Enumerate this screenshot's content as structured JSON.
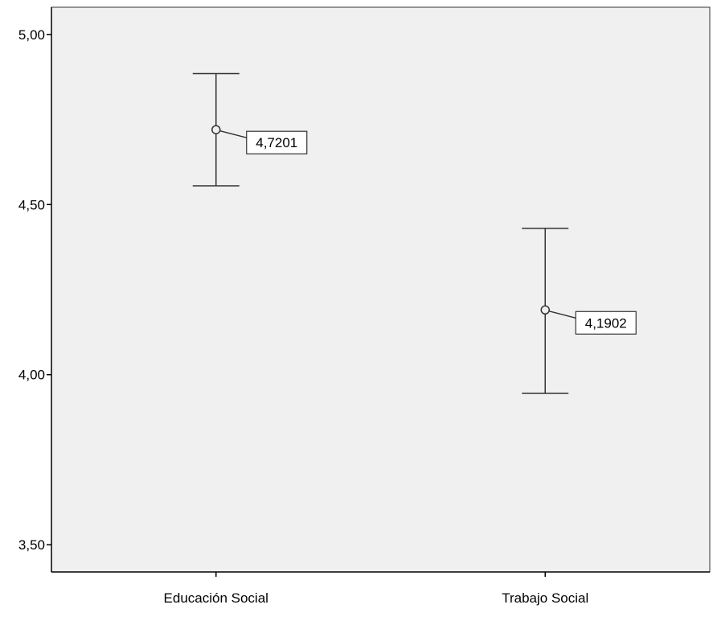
{
  "chart_data": {
    "type": "scatter",
    "title": "",
    "xlabel": "",
    "ylabel": "",
    "categories": [
      "Educación Social",
      "Trabajo Social"
    ],
    "series": [
      {
        "points": [
          {
            "category": "Educación Social",
            "mean": 4.7201,
            "lower": 4.555,
            "upper": 4.885,
            "label": "4,7201"
          },
          {
            "category": "Trabajo Social",
            "mean": 4.1902,
            "lower": 3.945,
            "upper": 4.43,
            "label": "4,1902"
          }
        ]
      }
    ],
    "ylim": [
      3.42,
      5.08
    ],
    "yticks": [
      {
        "value": 3.5,
        "label": "3,50"
      },
      {
        "value": 4.0,
        "label": "4,00"
      },
      {
        "value": 4.5,
        "label": "4,50"
      },
      {
        "value": 5.0,
        "label": "5,00"
      }
    ],
    "grid": false,
    "legend": "none"
  },
  "colors": {
    "plot_background": "#f0f0f0",
    "axis": "#000000",
    "marks": "#333333",
    "label_box": "#ffffff"
  }
}
